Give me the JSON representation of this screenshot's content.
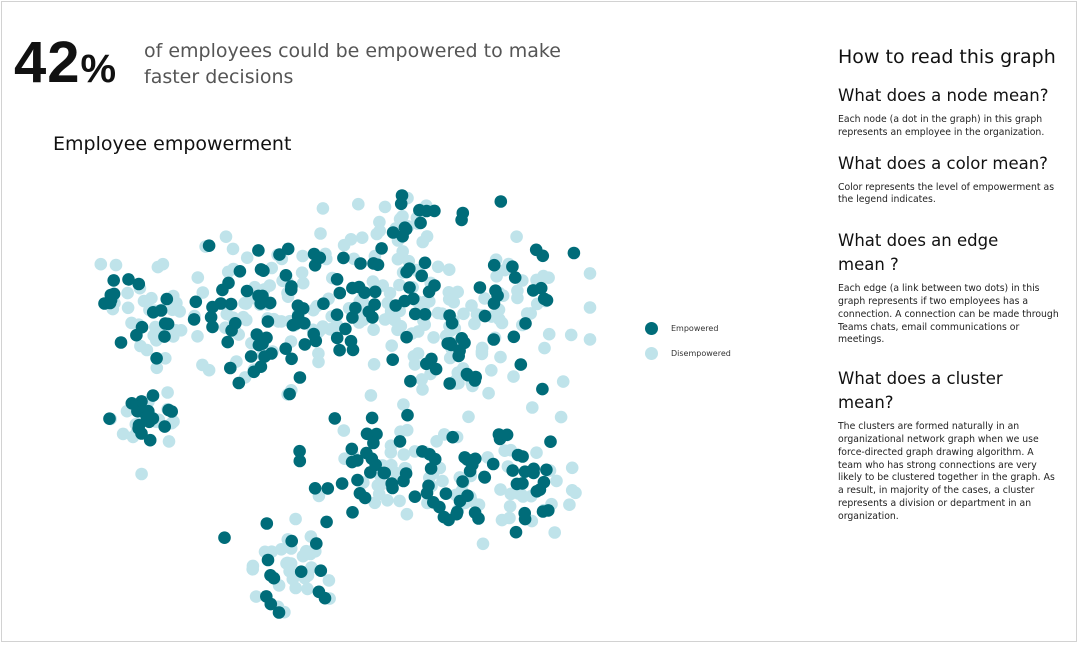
{
  "kpi": {
    "value": "42",
    "unit": "%",
    "caption": "of employees could be empowered to make faster decisions"
  },
  "chart": {
    "title": "Employee empowerment"
  },
  "legend": [
    {
      "label": "Empowered",
      "color": "#006c79"
    },
    {
      "label": "Disempowered",
      "color": "#bfe3ea"
    }
  ],
  "guide": {
    "title": "How to read this graph",
    "sections": [
      {
        "heading": "What does a node mean?",
        "body": "Each node (a dot in the graph) in this graph represents an employee in the organization."
      },
      {
        "heading": "What does a color mean?",
        "body": "Color represents the level of empowerment as the legend indicates."
      },
      {
        "heading": "What does an edge mean ?",
        "body": "Each edge (a link between two dots) in this graph represents if two employees has a connection. A connection can be made through Teams chats, email communications or meetings."
      },
      {
        "heading": "What does a cluster mean?",
        "body": "The clusters are formed naturally in an organizational network graph when we use force-directed graph drawing algorithm. A team who has strong connections are very likely to be clustered together in the graph. As a result, in majority of the cases, a cluster represents a division or department in an organization."
      }
    ]
  },
  "colors": {
    "empowered": "#006c79",
    "disempowered": "#bfe3ea"
  },
  "chart_data": {
    "type": "scatter",
    "title": "Employee empowerment",
    "series": [
      {
        "name": "Empowered",
        "share_percent": 42
      },
      {
        "name": "Disempowered",
        "share_percent": 58
      }
    ]
  }
}
